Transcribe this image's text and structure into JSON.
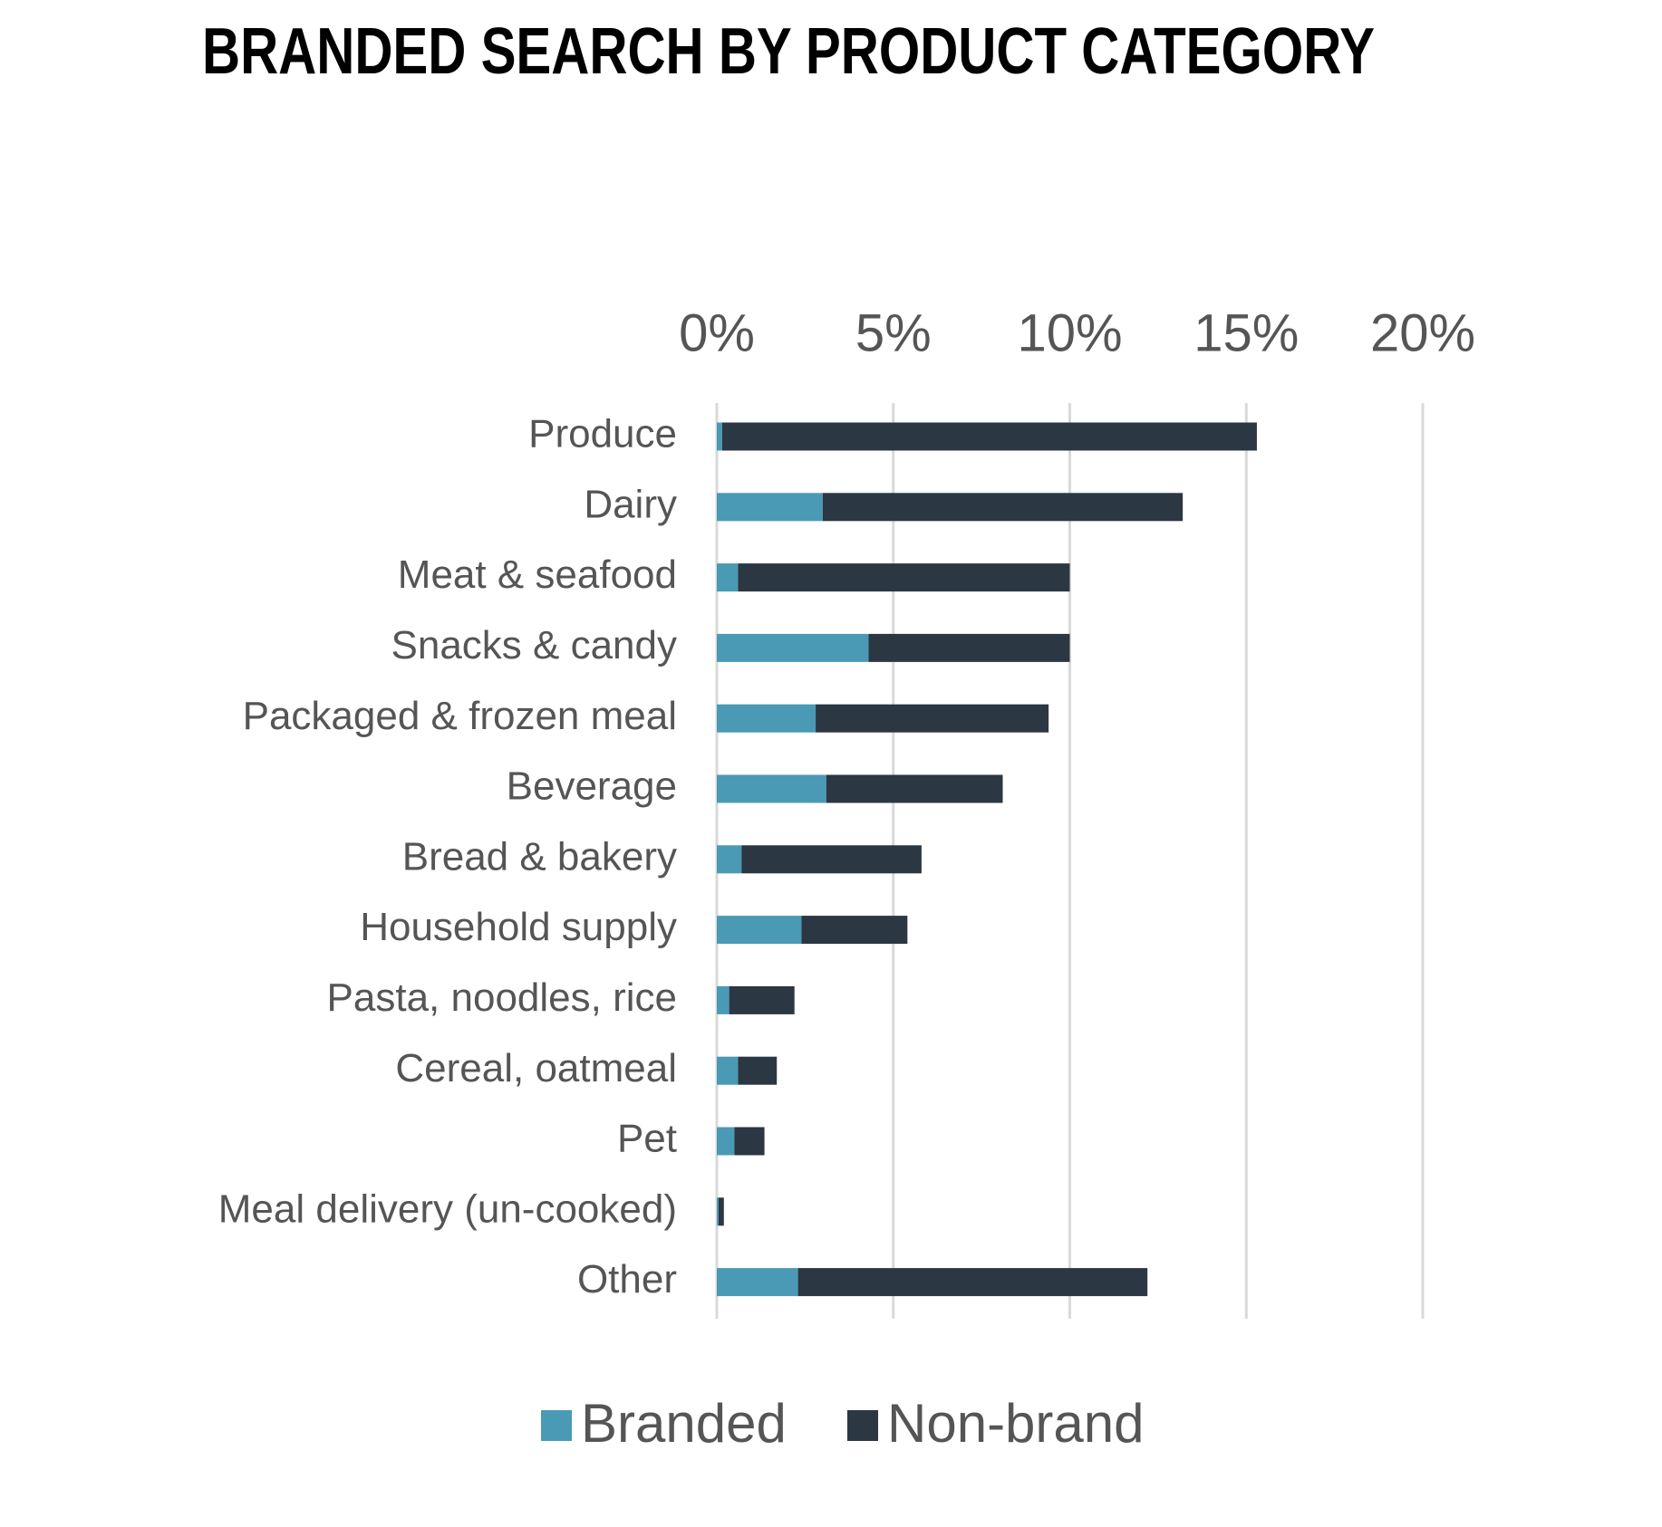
{
  "chart_data": {
    "type": "stacked-barh",
    "title": "BRANDED SEARCH BY PRODUCT CATEGORY",
    "categories": [
      "Produce",
      "Dairy",
      "Meat & seafood",
      "Snacks & candy",
      "Packaged & frozen meal",
      "Beverage",
      "Bread & bakery",
      "Household supply",
      "Pasta, noodles, rice",
      "Cereal, oatmeal",
      "Pet",
      "Meal delivery (un-cooked)",
      "Other"
    ],
    "series": [
      {
        "name": "Branded",
        "color": "#4a9ab5",
        "values": [
          0.15,
          3.0,
          0.6,
          4.3,
          2.8,
          3.1,
          0.7,
          2.4,
          0.35,
          0.6,
          0.5,
          0.05,
          2.3
        ]
      },
      {
        "name": "Non-brand",
        "color": "#2b3742",
        "values": [
          15.15,
          10.2,
          9.4,
          5.7,
          6.6,
          5.0,
          5.1,
          3.0,
          1.85,
          1.1,
          0.85,
          0.15,
          9.9
        ]
      }
    ],
    "xlim": [
      0,
      20
    ],
    "xticks": [
      {
        "value": 0,
        "label": "0%"
      },
      {
        "value": 5,
        "label": "5%"
      },
      {
        "value": 10,
        "label": "10%"
      },
      {
        "value": 15,
        "label": "15%"
      },
      {
        "value": 20,
        "label": "20%"
      }
    ],
    "grid": true,
    "legend": "bottom"
  }
}
